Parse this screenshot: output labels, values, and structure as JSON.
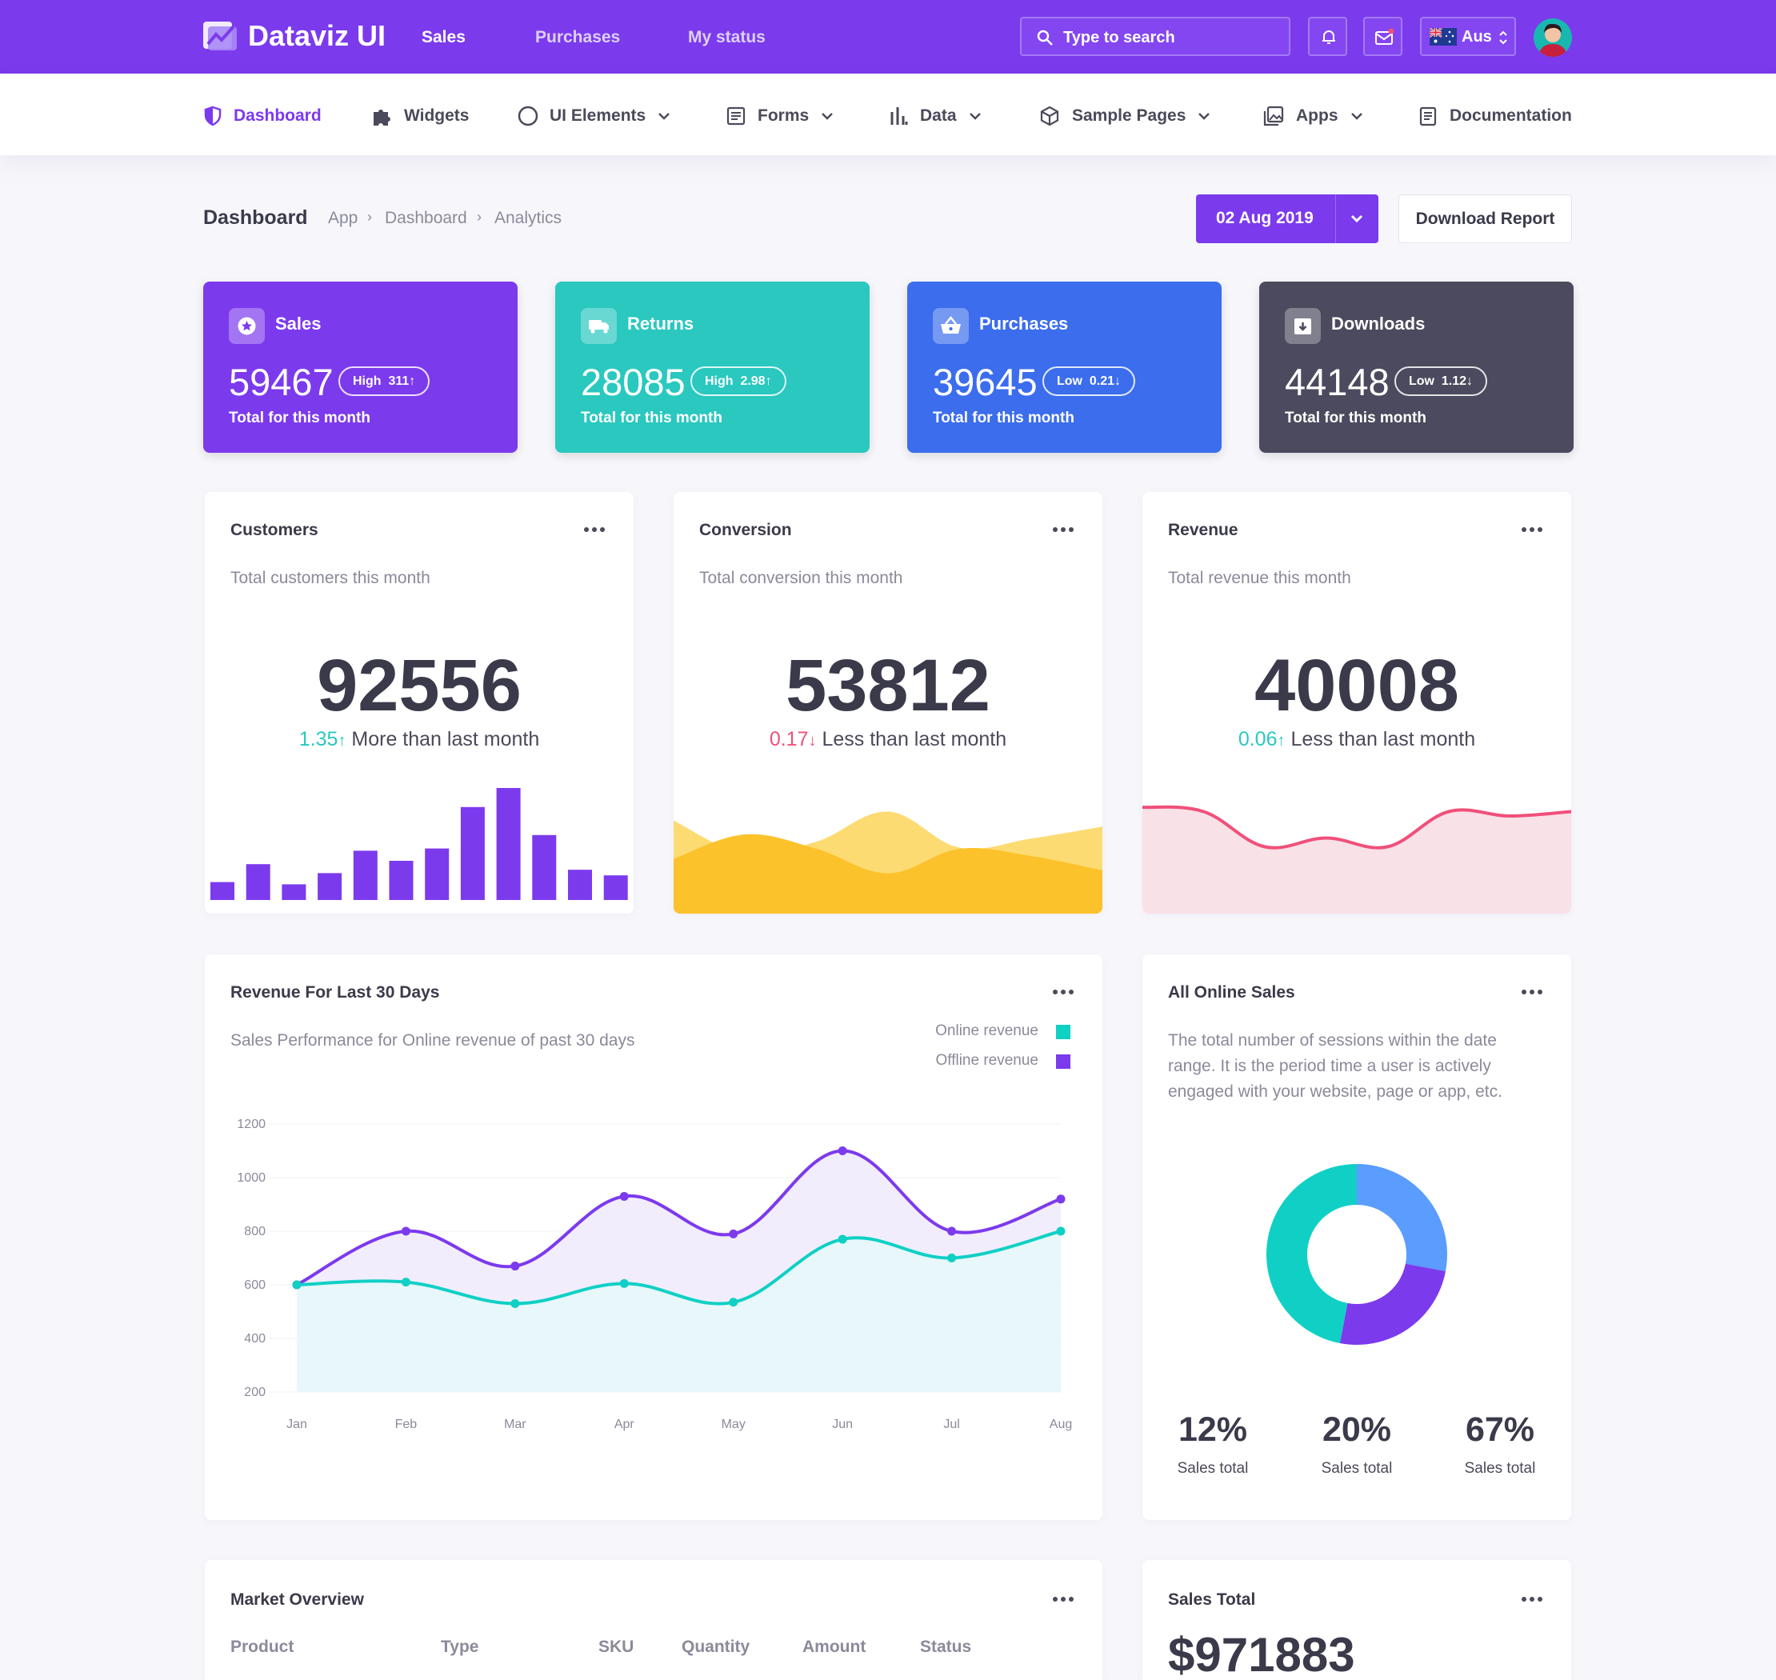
{
  "app": {
    "logo": "Dataviz UI",
    "top_nav": [
      "Sales",
      "Purchases",
      "My status"
    ],
    "search_placeholder": "Type to search",
    "region": "Aus"
  },
  "nav": [
    {
      "label": "Dashboard",
      "icon": "shield-icon",
      "active": true
    },
    {
      "label": "Widgets",
      "icon": "puzzle-icon"
    },
    {
      "label": "UI Elements",
      "icon": "circle-icon",
      "dropdown": true
    },
    {
      "label": "Forms",
      "icon": "form-icon",
      "dropdown": true
    },
    {
      "label": "Data",
      "icon": "bar-chart-icon",
      "dropdown": true
    },
    {
      "label": "Sample Pages",
      "icon": "cube-icon",
      "dropdown": true
    },
    {
      "label": "Apps",
      "icon": "gallery-icon",
      "dropdown": true
    },
    {
      "label": "Documentation",
      "icon": "document-icon"
    }
  ],
  "header": {
    "title": "Dashboard",
    "breadcrumb": [
      "App",
      "Dashboard",
      "Analytics"
    ],
    "date": "02 Aug 2019",
    "download": "Download Report"
  },
  "stats": [
    {
      "title": "Sales",
      "value": "59467",
      "badge_label": "High",
      "badge_value": "311",
      "arrow": "↑",
      "subtitle": "Total for this month",
      "color": "#7c3aed",
      "icon": "star-icon"
    },
    {
      "title": "Returns",
      "value": "28085",
      "badge_label": "High",
      "badge_value": "2.98",
      "arrow": "↑",
      "subtitle": "Total for this month",
      "color": "#2ac8bf",
      "icon": "truck-icon"
    },
    {
      "title": "Purchases",
      "value": "39645",
      "badge_label": "Low",
      "badge_value": "0.21",
      "arrow": "↓",
      "subtitle": "Total for this month",
      "color": "#3b6ded",
      "icon": "basket-icon"
    },
    {
      "title": "Downloads",
      "value": "44148",
      "badge_label": "Low",
      "badge_value": "1.12",
      "arrow": "↓",
      "subtitle": "Total for this month",
      "color": "#4b4a5e",
      "icon": "archive-icon"
    }
  ],
  "kpis": [
    {
      "title": "Customers",
      "subtitle": "Total customers this month",
      "value": "92556",
      "delta": "1.35",
      "arrow": "↑",
      "delta_text": "More than last month",
      "delta_color": "#2ac8bf"
    },
    {
      "title": "Conversion",
      "subtitle": "Total conversion this month",
      "value": "53812",
      "delta": "0.17",
      "arrow": "↓",
      "delta_text": "Less than last month",
      "delta_color": "#f0507a"
    },
    {
      "title": "Revenue",
      "subtitle": "Total revenue this month",
      "value": "40008",
      "delta": "0.06",
      "arrow": "↑",
      "delta_text": "Less than last month",
      "delta_color": "#2ac8bf"
    }
  ],
  "revenue30": {
    "title": "Revenue For Last 30 Days",
    "subtitle": "Sales Performance for Online revenue of past 30 days",
    "legend": [
      {
        "name": "Online revenue",
        "color": "#10d0c5"
      },
      {
        "name": "Offline revenue",
        "color": "#7c3aed"
      }
    ]
  },
  "online_sales": {
    "title": "All Online Sales",
    "description": "The total number of sessions within the date range. It is the period time a user is actively engaged with your website, page or app, etc.",
    "stats": [
      {
        "value": "12%",
        "label": "Sales total"
      },
      {
        "value": "20%",
        "label": "Sales total"
      },
      {
        "value": "67%",
        "label": "Sales total"
      }
    ]
  },
  "market": {
    "title": "Market Overview",
    "columns": [
      "Product",
      "Type",
      "SKU",
      "Quantity",
      "Amount",
      "Status"
    ]
  },
  "sales_total": {
    "title": "Sales Total",
    "value": "$971883"
  },
  "chart_data": [
    {
      "type": "bar",
      "categories": [
        "1",
        "2",
        "3",
        "4",
        "5",
        "6",
        "7",
        "8",
        "9",
        "10",
        "11",
        "12"
      ],
      "values": [
        16,
        32,
        14,
        24,
        44,
        35,
        46,
        83,
        100,
        58,
        27,
        22
      ],
      "ylim": [
        0,
        100
      ],
      "color": "#7c3aed"
    },
    {
      "type": "area",
      "x": [
        0,
        1,
        2,
        3,
        4,
        5,
        6
      ],
      "series": [
        {
          "values": [
            62,
            40,
            48,
            68,
            44,
            50,
            58
          ],
          "color": "#fcd55a"
        },
        {
          "values": [
            38,
            55,
            45,
            28,
            45,
            40,
            30
          ],
          "color": "#fbc22b"
        }
      ],
      "ylim": [
        0,
        100
      ]
    },
    {
      "type": "area",
      "x": [
        0,
        1,
        2,
        3,
        4,
        5,
        6,
        7
      ],
      "series": [
        {
          "values": [
            80,
            75,
            35,
            45,
            35,
            75,
            70,
            75
          ],
          "color": "#f0507a"
        }
      ],
      "ylim": [
        0,
        100
      ]
    },
    {
      "type": "line",
      "categories": [
        "Jan",
        "Feb",
        "Mar",
        "Apr",
        "May",
        "Jun",
        "Jul",
        "Aug"
      ],
      "series": [
        {
          "name": "Offline revenue",
          "values": [
            600,
            800,
            670,
            930,
            790,
            1100,
            800,
            920
          ],
          "color": "#7c3aed"
        },
        {
          "name": "Online revenue",
          "values": [
            600,
            610,
            530,
            605,
            535,
            770,
            700,
            800
          ],
          "color": "#10d0c5"
        }
      ],
      "yticks": [
        200,
        400,
        600,
        800,
        1000,
        1200
      ],
      "ylim": [
        200,
        1200
      ]
    },
    {
      "type": "pie",
      "donut": true,
      "values": [
        28,
        25,
        47
      ],
      "colors": [
        "#5b9cff",
        "#7c3aed",
        "#10d0c5"
      ]
    }
  ]
}
